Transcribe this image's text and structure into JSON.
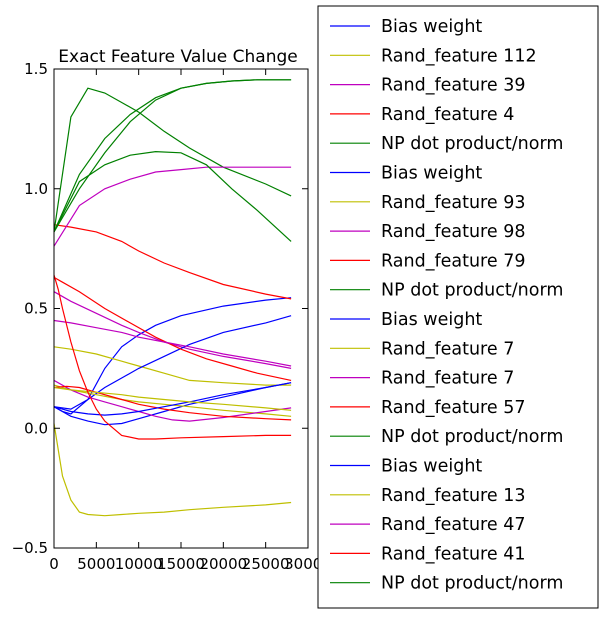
{
  "chart_data": {
    "type": "line",
    "title": "Exact Feature Value Change",
    "xlabel": "",
    "ylabel": "",
    "xlim": [
      0,
      30000
    ],
    "ylim": [
      -0.5,
      1.5
    ],
    "xticks": [
      "0",
      "5000",
      "10000",
      "15000",
      "20000",
      "25000",
      "30000"
    ],
    "xtick_values": [
      0,
      5000,
      10000,
      15000,
      20000,
      25000,
      30000
    ],
    "yticks": [
      "−0.5",
      "0.0",
      "0.5",
      "1.0",
      "1.5"
    ],
    "ytick_values": [
      -0.5,
      0,
      0.5,
      1.0,
      1.5
    ],
    "grid": false,
    "legend_position": "right, outside plot",
    "series": [
      {
        "name": "Bias weight",
        "color": "#0000ff",
        "x": [
          0,
          1000,
          2000,
          4000,
          6000,
          8000,
          10000,
          12000,
          15000,
          20000,
          25000,
          28000
        ],
        "y": [
          0.09,
          0.07,
          0.06,
          0.12,
          0.25,
          0.34,
          0.39,
          0.43,
          0.47,
          0.51,
          0.535,
          0.545
        ]
      },
      {
        "name": "Rand_feature 112",
        "color": "#bfbf00",
        "x": [
          0,
          2000,
          5000,
          8000,
          10000,
          13000,
          16000,
          20000,
          25000,
          28000
        ],
        "y": [
          0.34,
          0.33,
          0.31,
          0.28,
          0.26,
          0.23,
          0.2,
          0.19,
          0.18,
          0.18
        ]
      },
      {
        "name": "Rand_feature 39",
        "color": "#bf00bf",
        "x": [
          0,
          2000,
          5000,
          8000,
          10000,
          13000,
          16000,
          20000,
          25000,
          28000
        ],
        "y": [
          0.57,
          0.53,
          0.48,
          0.43,
          0.4,
          0.36,
          0.33,
          0.3,
          0.27,
          0.25
        ]
      },
      {
        "name": "Rand_feature 4",
        "color": "#ff0000",
        "x": [
          0,
          2000,
          5000,
          8000,
          10000,
          13000,
          16000,
          20000,
          25000,
          28000
        ],
        "y": [
          0.85,
          0.84,
          0.82,
          0.78,
          0.74,
          0.69,
          0.65,
          0.6,
          0.56,
          0.54
        ]
      },
      {
        "name": "NP dot product/norm",
        "color": "#008000",
        "x": [
          0,
          2000,
          4000,
          6000,
          8000,
          10000,
          13000,
          16000,
          20000,
          25000,
          28000
        ],
        "y": [
          0.82,
          1.3,
          1.42,
          1.4,
          1.36,
          1.32,
          1.24,
          1.17,
          1.09,
          1.02,
          0.97
        ]
      },
      {
        "name": "Bias weight",
        "color": "#0000ff",
        "x": [
          0,
          2000,
          4000,
          6000,
          8000,
          10000,
          13000,
          16000,
          20000,
          25000,
          28000
        ],
        "y": [
          0.09,
          0.08,
          0.12,
          0.17,
          0.21,
          0.25,
          0.3,
          0.35,
          0.4,
          0.44,
          0.47
        ]
      },
      {
        "name": "Rand_feature 93",
        "color": "#bfbf00",
        "x": [
          0,
          1000,
          2000,
          3000,
          4000,
          6000,
          8000,
          10000,
          13000,
          16000,
          20000,
          25000,
          28000
        ],
        "y": [
          0.02,
          -0.2,
          -0.3,
          -0.35,
          -0.36,
          -0.365,
          -0.36,
          -0.355,
          -0.35,
          -0.34,
          -0.33,
          -0.32,
          -0.31
        ]
      },
      {
        "name": "Rand_feature 98",
        "color": "#bf00bf",
        "x": [
          0,
          3000,
          6000,
          9000,
          12000,
          15000,
          18000,
          20000,
          25000,
          28000
        ],
        "y": [
          0.76,
          0.93,
          1.0,
          1.04,
          1.07,
          1.08,
          1.09,
          1.09,
          1.09,
          1.09
        ]
      },
      {
        "name": "Rand_feature 79",
        "color": "#ff0000",
        "x": [
          0,
          1000,
          3000,
          6000,
          9000,
          12000,
          15000,
          18000,
          21000,
          24000,
          28000
        ],
        "y": [
          0.63,
          0.61,
          0.57,
          0.5,
          0.44,
          0.38,
          0.33,
          0.29,
          0.26,
          0.23,
          0.2
        ]
      },
      {
        "name": "NP dot product/norm",
        "color": "#008000",
        "x": [
          0,
          3000,
          6000,
          9000,
          12000,
          15000,
          18000,
          21000,
          24000,
          28000
        ],
        "y": [
          0.82,
          1.03,
          1.1,
          1.14,
          1.155,
          1.15,
          1.1,
          1.0,
          0.91,
          0.78
        ]
      },
      {
        "name": "Bias weight",
        "color": "#0000ff",
        "x": [
          0,
          2000,
          4000,
          6000,
          8000,
          10000,
          13000,
          16000,
          20000,
          25000,
          28000
        ],
        "y": [
          0.09,
          0.05,
          0.03,
          0.015,
          0.02,
          0.04,
          0.07,
          0.1,
          0.13,
          0.17,
          0.19
        ]
      },
      {
        "name": "Rand_feature 7",
        "color": "#bfbf00",
        "x": [
          0,
          2000,
          5000,
          8000,
          10000,
          13000,
          16000,
          20000,
          25000,
          28000
        ],
        "y": [
          0.18,
          0.16,
          0.14,
          0.12,
          0.11,
          0.1,
          0.09,
          0.075,
          0.06,
          0.05
        ]
      },
      {
        "name": "Rand_feature 7",
        "color": "#bf00bf",
        "x": [
          0,
          2000,
          4000,
          6000,
          8000,
          10000,
          12000,
          14000,
          16000,
          20000,
          25000,
          28000
        ],
        "y": [
          0.2,
          0.16,
          0.13,
          0.11,
          0.09,
          0.07,
          0.05,
          0.035,
          0.03,
          0.045,
          0.07,
          0.085
        ]
      },
      {
        "name": "Rand_feature 57",
        "color": "#ff0000",
        "x": [
          0,
          1500,
          3000,
          5000,
          8000,
          10000,
          13000,
          16000,
          20000,
          25000,
          28000
        ],
        "y": [
          0.17,
          0.175,
          0.17,
          0.15,
          0.12,
          0.1,
          0.08,
          0.065,
          0.05,
          0.04,
          0.035
        ]
      },
      {
        "name": "NP dot product/norm",
        "color": "#008000",
        "x": [
          0,
          3000,
          6000,
          9000,
          12000,
          15000,
          18000,
          21000,
          24000,
          28000
        ],
        "y": [
          0.82,
          1.0,
          1.15,
          1.28,
          1.37,
          1.42,
          1.44,
          1.45,
          1.455,
          1.455
        ]
      },
      {
        "name": "Bias weight",
        "color": "#0000ff",
        "x": [
          0,
          2000,
          4000,
          6000,
          8000,
          10000,
          13000,
          16000,
          20000,
          25000,
          28000
        ],
        "y": [
          0.09,
          0.07,
          0.06,
          0.055,
          0.06,
          0.07,
          0.09,
          0.11,
          0.14,
          0.17,
          0.19
        ]
      },
      {
        "name": "Rand_feature 13",
        "color": "#bfbf00",
        "x": [
          0,
          2000,
          5000,
          8000,
          10000,
          13000,
          16000,
          20000,
          25000,
          28000
        ],
        "y": [
          0.17,
          0.16,
          0.15,
          0.14,
          0.13,
          0.12,
          0.11,
          0.1,
          0.085,
          0.075
        ]
      },
      {
        "name": "Rand_feature 47",
        "color": "#bf00bf",
        "x": [
          0,
          2000,
          5000,
          8000,
          10000,
          13000,
          16000,
          20000,
          25000,
          28000
        ],
        "y": [
          0.45,
          0.44,
          0.42,
          0.4,
          0.38,
          0.36,
          0.34,
          0.31,
          0.28,
          0.26
        ]
      },
      {
        "name": "Rand_feature 41",
        "color": "#ff0000",
        "x": [
          0,
          500,
          1000,
          2000,
          3000,
          4000,
          5000,
          6000,
          7000,
          8000,
          10000,
          12000,
          15000,
          20000,
          25000,
          28000
        ],
        "y": [
          0.64,
          0.58,
          0.5,
          0.36,
          0.24,
          0.15,
          0.08,
          0.03,
          0.0,
          -0.03,
          -0.045,
          -0.045,
          -0.04,
          -0.035,
          -0.03,
          -0.03
        ]
      },
      {
        "name": "NP dot product/norm",
        "color": "#008000",
        "x": [
          0,
          3000,
          6000,
          9000,
          12000,
          15000,
          18000,
          21000,
          24000,
          28000
        ],
        "y": [
          0.82,
          1.06,
          1.21,
          1.31,
          1.38,
          1.42,
          1.44,
          1.45,
          1.455,
          1.455
        ]
      }
    ]
  }
}
